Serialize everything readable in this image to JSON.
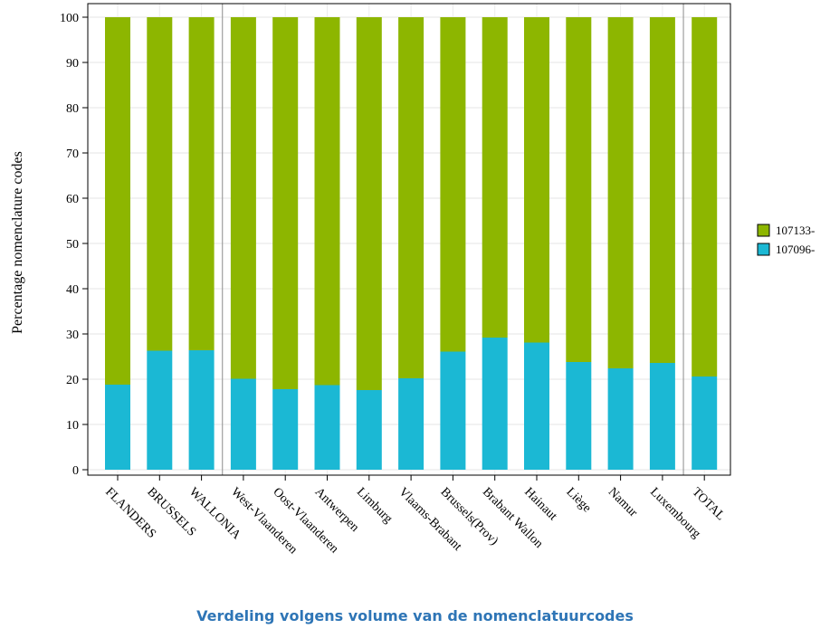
{
  "caption": "Verdeling volgens volume van de nomenclatuurcodes",
  "chart_data": {
    "type": "bar",
    "stacked": true,
    "ylabel": "Percentage nomenclature codes",
    "ylim": [
      0,
      100
    ],
    "yticks": [
      0,
      10,
      20,
      30,
      40,
      50,
      60,
      70,
      80,
      90,
      100
    ],
    "grid": true,
    "legend_position": "right",
    "categories": [
      "FLANDERS",
      "BRUSSELS",
      "WALLONIA",
      "West-Vlaanderen",
      "Oost-Vlaanderen",
      "Antwerpen",
      "Limburg",
      "Vlaams-Brabant",
      "Brussels(Prov)",
      "Brabant Wallon",
      "Hainaut",
      "Liège",
      "Namur",
      "Luxembourg",
      "TOTAL"
    ],
    "group_separators_after": [
      2,
      13
    ],
    "series": [
      {
        "name": "107096-",
        "color": "#1bb8d4",
        "values": [
          18.8,
          26.3,
          26.4,
          20.1,
          17.8,
          18.7,
          17.6,
          20.2,
          26.1,
          29.2,
          28.1,
          23.8,
          22.4,
          23.6,
          20.6
        ]
      },
      {
        "name": "107133-",
        "color": "#8db600",
        "values": [
          81.2,
          73.7,
          73.6,
          79.9,
          82.2,
          81.3,
          82.4,
          79.8,
          73.9,
          70.8,
          71.9,
          76.2,
          77.6,
          76.4,
          79.4
        ]
      }
    ],
    "legend_order": [
      "107133-",
      "107096-"
    ]
  }
}
